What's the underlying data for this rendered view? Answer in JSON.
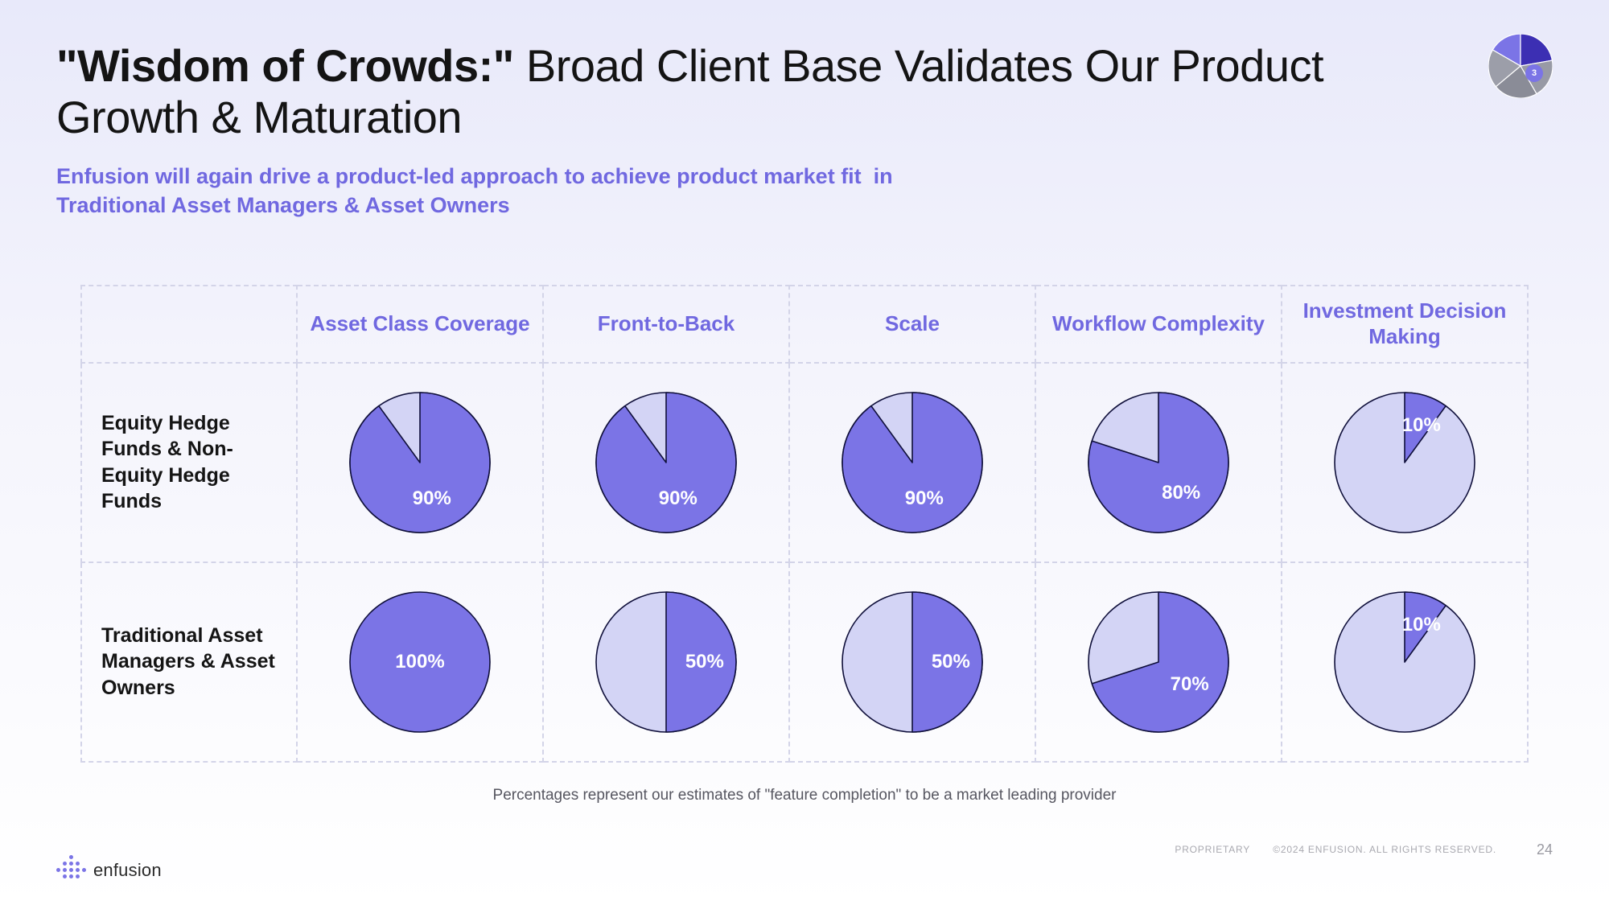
{
  "title_bold": "\"Wisdom of Crowds:\"",
  "title_rest": " Broad Client Base Validates Our Product Growth & Maturation",
  "subtitle": "Enfusion will again drive a product-led approach to achieve product market fit  in Traditional Asset Managers & Asset Owners",
  "columns": [
    "Asset Class Coverage",
    "Front-to-Back",
    "Scale",
    "Workflow Complexity",
    "Investment Decision Making"
  ],
  "rows": [
    {
      "label": "Equity Hedge Funds & Non-Equity Hedge Funds",
      "cells": [
        {
          "value": 90,
          "label": "90%"
        },
        {
          "value": 90,
          "label": "90%"
        },
        {
          "value": 90,
          "label": "90%"
        },
        {
          "value": 80,
          "label": "80%"
        },
        {
          "value": 10,
          "label": "10%"
        }
      ]
    },
    {
      "label": "Traditional Asset Managers & Asset Owners",
      "cells": [
        {
          "value": 100,
          "label": "100%"
        },
        {
          "value": 50,
          "label": "50%"
        },
        {
          "value": 50,
          "label": "50%"
        },
        {
          "value": 70,
          "label": "70%"
        },
        {
          "value": 10,
          "label": "10%"
        }
      ]
    }
  ],
  "pie_style": {
    "radius": 87,
    "fill_color": "#7b74e6",
    "empty_color": "#d3d4f5",
    "stroke_color": "#0f0f3a",
    "stroke_width": 1.6,
    "label_fontsize": 24,
    "label_color": "#ffffff"
  },
  "footnote": "Percentages represent our estimates of \"feature completion\" to be a market leading provider",
  "indicator": {
    "number": "3",
    "slices": [
      {
        "start": 300,
        "end": 360,
        "color": "#7b74e6"
      },
      {
        "start": 0,
        "end": 80,
        "color": "#3c2fb3"
      },
      {
        "start": 80,
        "end": 150,
        "color": "#989aa5"
      },
      {
        "start": 150,
        "end": 230,
        "color": "#8a8c97"
      },
      {
        "start": 230,
        "end": 300,
        "color": "#9c9ea9"
      }
    ],
    "stroke": "#ffffff",
    "radius": 40
  },
  "logo_text": "enfusion",
  "proprietary": "PROPRIETARY",
  "copyright": "©2024 ENFUSION. ALL RIGHTS RESERVED.",
  "page_number": "24",
  "background_colors": {
    "top": "#e8e9fa",
    "bottom": "#ffffff"
  }
}
